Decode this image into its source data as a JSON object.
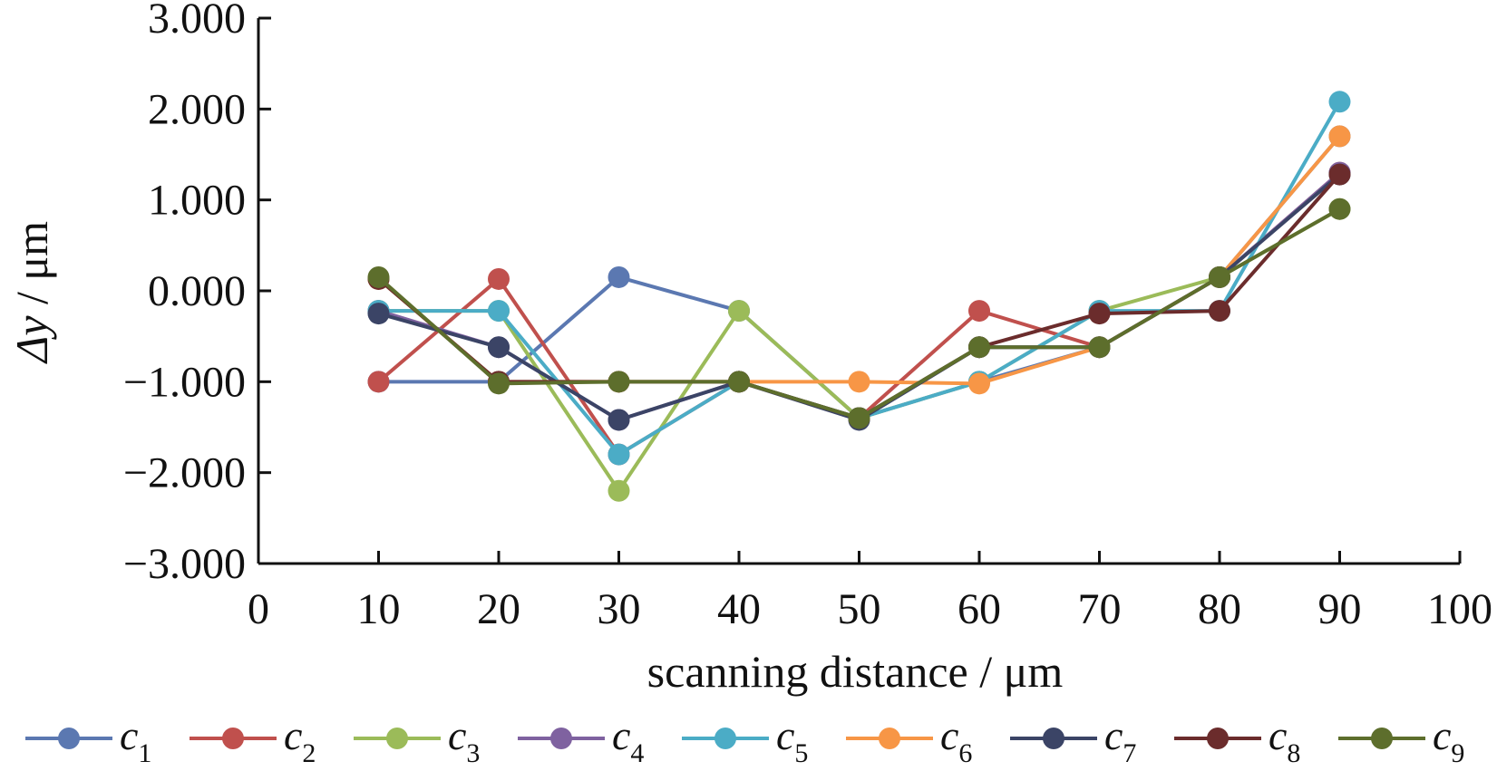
{
  "chart_data": {
    "type": "line",
    "xlabel": "scanning distance / μm",
    "ylabel_symbol": "Δy",
    "ylabel_unit": " / μm",
    "xlim": [
      0,
      100
    ],
    "ylim": [
      -3,
      3
    ],
    "x_ticks": [
      0,
      10,
      20,
      30,
      40,
      50,
      60,
      70,
      80,
      90,
      100
    ],
    "y_ticks": [
      -3,
      -2,
      -1,
      0,
      1,
      2,
      3
    ],
    "x_tick_labels": [
      "0",
      "10",
      "20",
      "30",
      "40",
      "50",
      "60",
      "70",
      "80",
      "90",
      "100"
    ],
    "y_tick_labels": [
      "−3.000",
      "−2.000",
      "−1.000",
      "0.000",
      "1.000",
      "2.000",
      "3.000"
    ],
    "grid": false,
    "legend_position": "bottom",
    "x": [
      10,
      20,
      30,
      40,
      50,
      60,
      70,
      80,
      90
    ],
    "series": [
      {
        "name": "c",
        "sub": "1",
        "color": "#5b78b1",
        "values": [
          -1.0,
          -1.0,
          0.15,
          -0.22,
          -1.4,
          -1.0,
          -0.62,
          0.15,
          1.7
        ]
      },
      {
        "name": "c",
        "sub": "2",
        "color": "#c0504d",
        "values": [
          -1.0,
          0.13,
          -1.8,
          -1.0,
          -1.4,
          -0.22,
          -0.62,
          0.15,
          1.3
        ]
      },
      {
        "name": "c",
        "sub": "3",
        "color": "#9bbb59",
        "values": [
          -0.22,
          -0.22,
          -2.2,
          -0.22,
          -1.4,
          -1.0,
          -0.22,
          0.15,
          0.9
        ]
      },
      {
        "name": "c",
        "sub": "4",
        "color": "#7f62a0",
        "values": [
          -0.22,
          -0.62,
          -1.42,
          -1.0,
          -1.4,
          -0.62,
          -0.62,
          0.15,
          1.3
        ]
      },
      {
        "name": "c",
        "sub": "5",
        "color": "#4bacc6",
        "values": [
          -0.22,
          -0.22,
          -1.8,
          -1.0,
          -1.4,
          -1.0,
          -0.22,
          -0.22,
          2.08
        ]
      },
      {
        "name": "c",
        "sub": "6",
        "color": "#f79646",
        "values": [
          0.13,
          -1.0,
          -1.0,
          -1.0,
          -1.0,
          -1.02,
          -0.62,
          0.15,
          1.7
        ]
      },
      {
        "name": "c",
        "sub": "7",
        "color": "#3b4466",
        "values": [
          -0.25,
          -0.62,
          -1.42,
          -1.0,
          -1.42,
          -0.62,
          -0.62,
          0.15,
          1.28
        ]
      },
      {
        "name": "c",
        "sub": "8",
        "color": "#6b2c2c",
        "values": [
          0.13,
          -1.0,
          -1.0,
          -1.0,
          -1.4,
          -0.62,
          -0.25,
          -0.22,
          1.28
        ]
      },
      {
        "name": "c",
        "sub": "9",
        "color": "#5d6e2c",
        "values": [
          0.15,
          -1.02,
          -1.0,
          -1.0,
          -1.4,
          -0.62,
          -0.62,
          0.15,
          0.9
        ]
      }
    ]
  }
}
